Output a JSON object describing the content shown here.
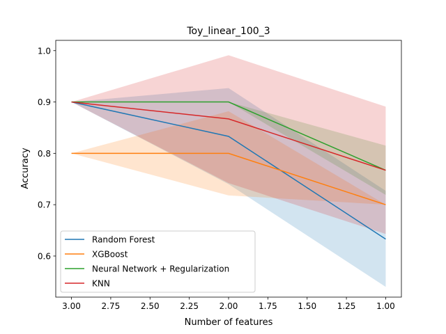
{
  "chart_data": {
    "type": "line",
    "title": "Toy_linear_100_3",
    "xlabel": "Number of features",
    "ylabel": "Accuracy",
    "x": [
      3.0,
      2.0,
      1.0
    ],
    "xlim": [
      3.1,
      0.9
    ],
    "ylim": [
      0.52,
      1.02
    ],
    "xticks": [
      3.0,
      2.75,
      2.5,
      2.25,
      2.0,
      1.75,
      1.5,
      1.25,
      1.0
    ],
    "xtick_labels": [
      "3.00",
      "2.75",
      "2.50",
      "2.25",
      "2.00",
      "1.75",
      "1.50",
      "1.25",
      "1.00"
    ],
    "yticks": [
      0.6,
      0.7,
      0.8,
      0.9,
      1.0
    ],
    "ytick_labels": [
      "0.6",
      "0.7",
      "0.8",
      "0.9",
      "1.0"
    ],
    "grid": false,
    "legend_position": "lower-left",
    "series": [
      {
        "name": "Random Forest",
        "color": "#1f77b4",
        "values": [
          0.9,
          0.833,
          0.633
        ],
        "lower": [
          0.9,
          0.74,
          0.54
        ],
        "upper": [
          0.9,
          0.927,
          0.727
        ]
      },
      {
        "name": "XGBoost",
        "color": "#ff7f0e",
        "values": [
          0.8,
          0.8,
          0.7
        ],
        "lower": [
          0.8,
          0.718,
          0.7
        ],
        "upper": [
          0.8,
          0.882,
          0.7
        ]
      },
      {
        "name": "Neural Network + Regularization",
        "color": "#2ca02c",
        "values": [
          0.9,
          0.9,
          0.767
        ],
        "lower": [
          0.9,
          0.9,
          0.719
        ],
        "upper": [
          0.9,
          0.9,
          0.815
        ]
      },
      {
        "name": "KNN",
        "color": "#d62728",
        "values": [
          0.9,
          0.867,
          0.767
        ],
        "lower": [
          0.9,
          0.742,
          0.643
        ],
        "upper": [
          0.9,
          0.991,
          0.891
        ]
      }
    ]
  }
}
